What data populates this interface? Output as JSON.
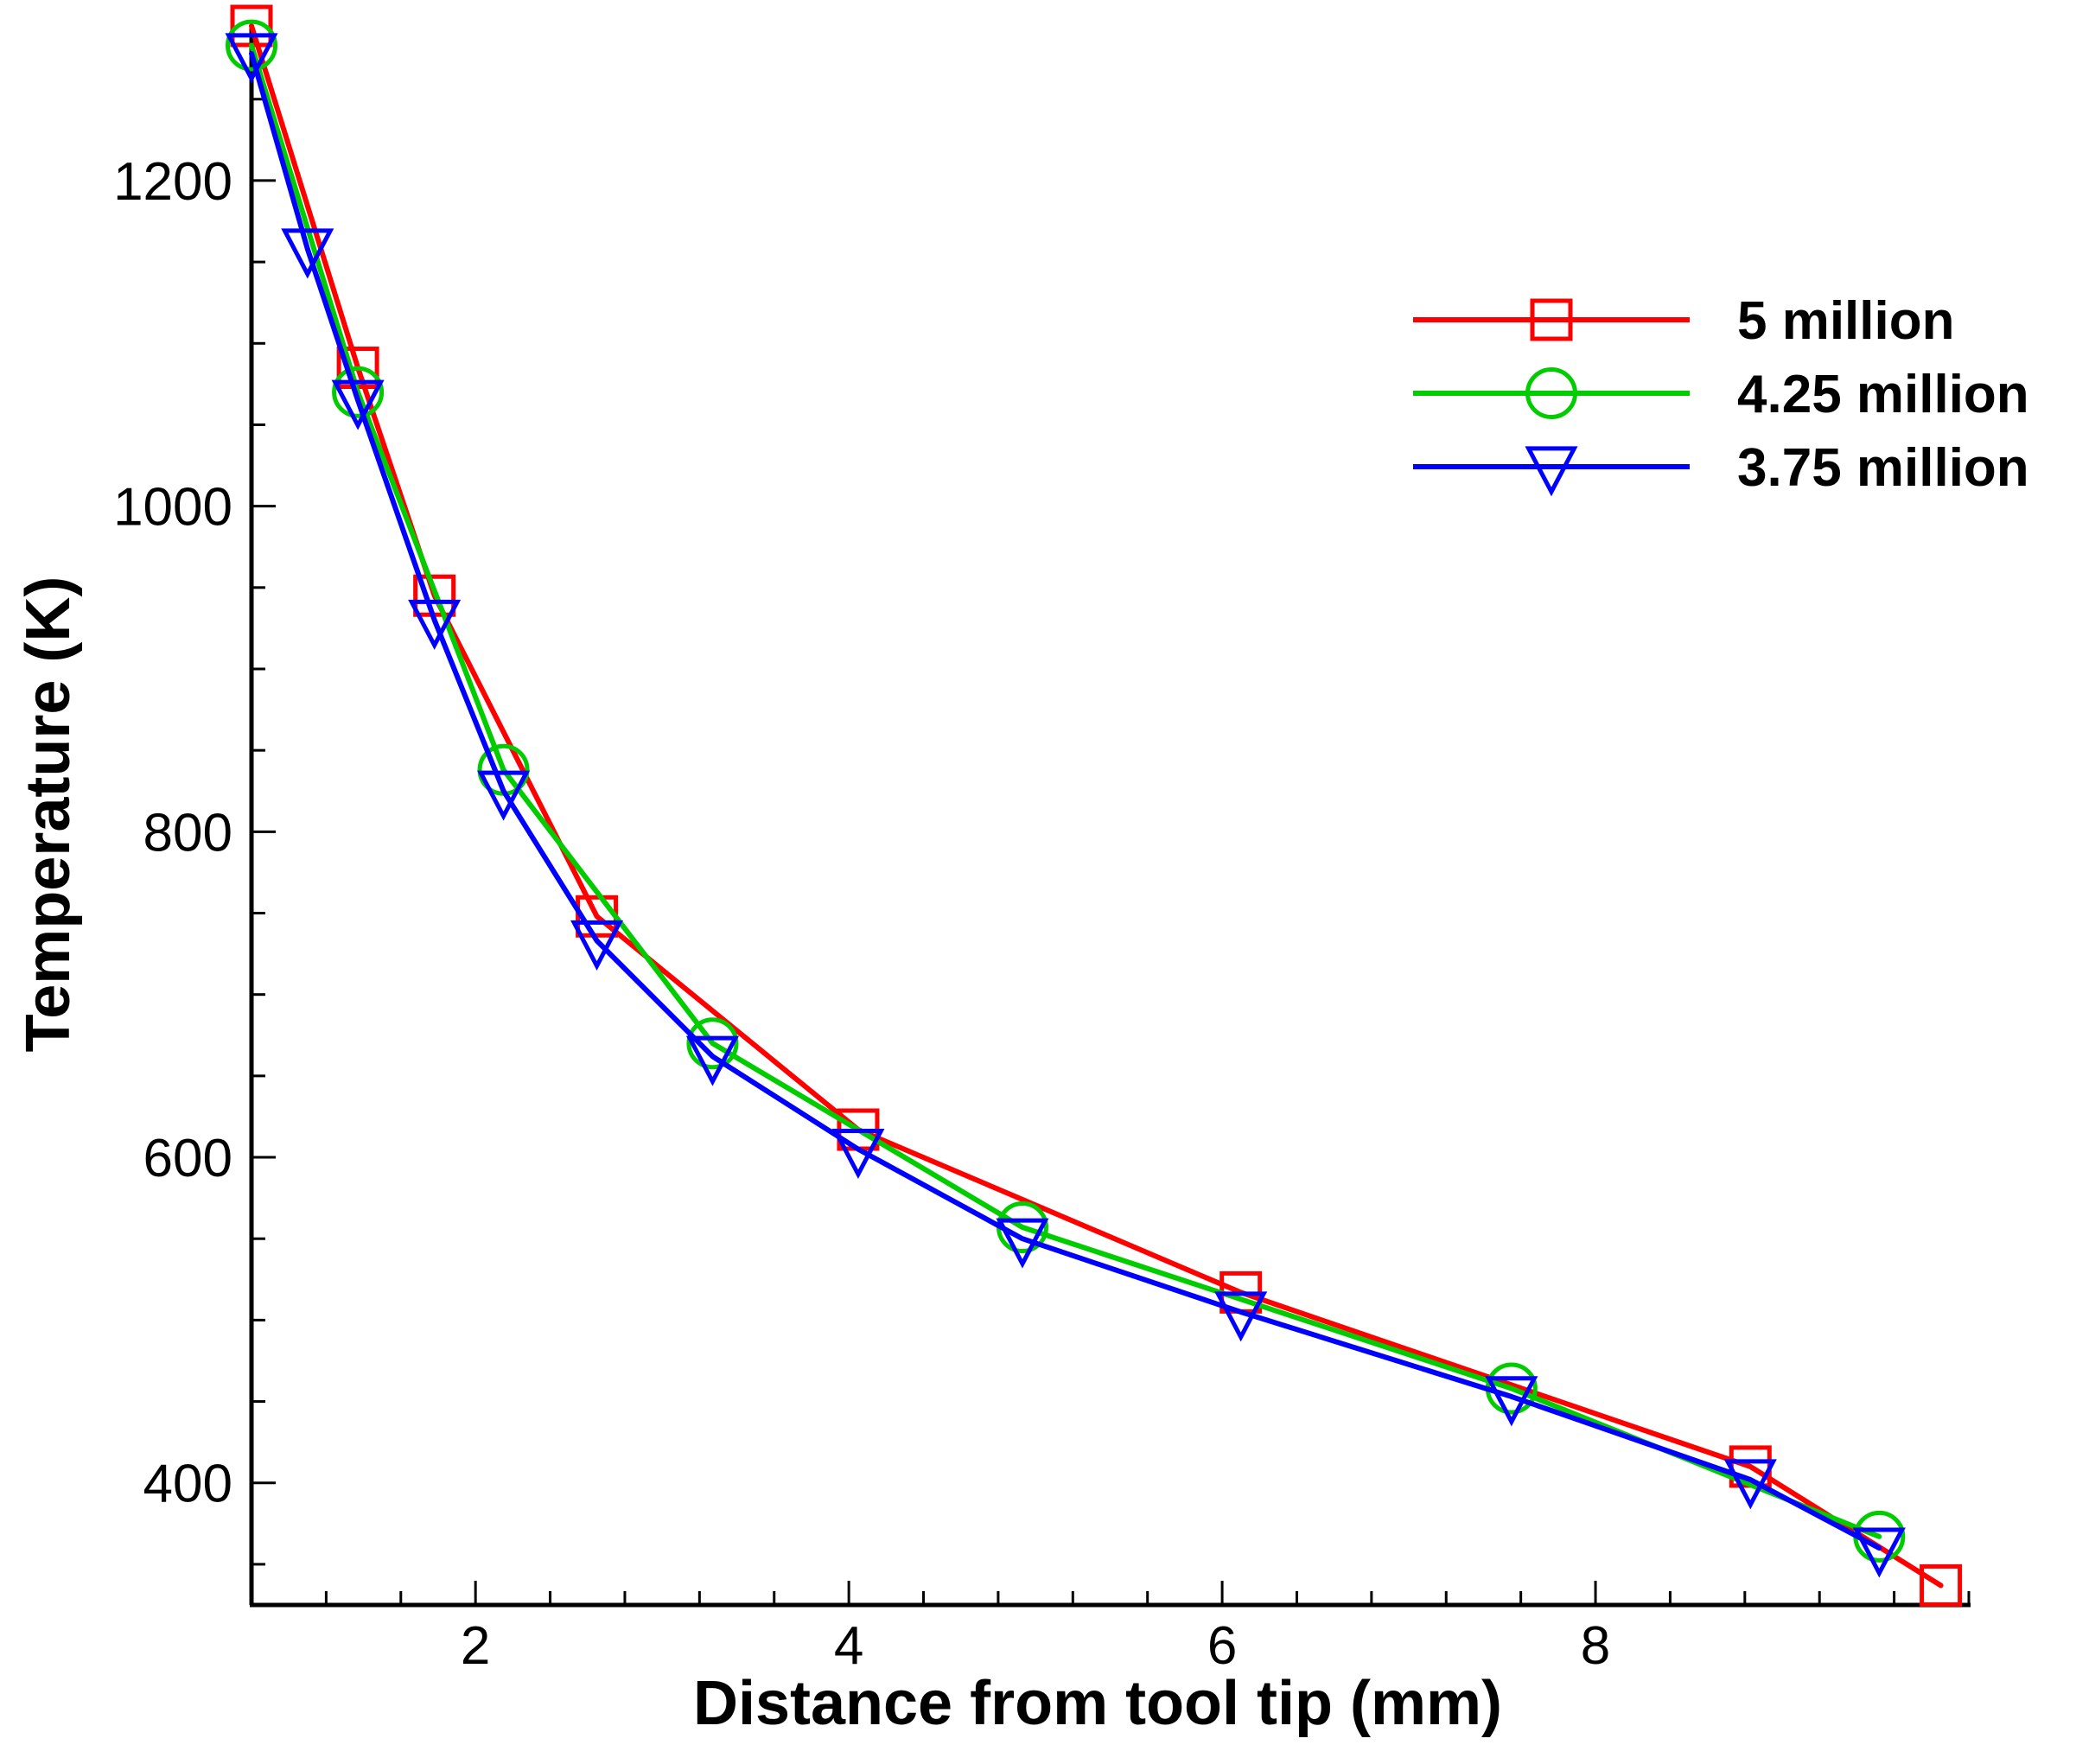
{
  "chart_data": {
    "type": "line",
    "title": "",
    "xlabel": "Distance from tool tip (mm)",
    "ylabel": "Temperature (K)",
    "xlim": [
      0.8,
      10.0
    ],
    "ylim": [
      325,
      1295
    ],
    "x_major_ticks": [
      2,
      4,
      6,
      8
    ],
    "x_minor_step": 0.4,
    "y_major_ticks": [
      400,
      600,
      800,
      1000,
      1200
    ],
    "y_minor_step": 50,
    "grid": false,
    "legend_position": "top-right",
    "series": [
      {
        "name": "5 million",
        "color": "#ff0000",
        "marker": "square",
        "x": [
          0.8,
          1.37,
          1.78,
          2.65,
          4.05,
          6.1,
          8.83,
          9.85
        ],
        "y": [
          1295,
          1085,
          945,
          748,
          617,
          517,
          410,
          337
        ]
      },
      {
        "name": "4.25 million",
        "color": "#00cc00",
        "marker": "circle",
        "x": [
          0.8,
          1.37,
          2.15,
          3.27,
          4.93,
          7.55,
          9.52
        ],
        "y": [
          1283,
          1070,
          838,
          670,
          557,
          458,
          367
        ]
      },
      {
        "name": "3.75 million",
        "color": "#0000ff",
        "marker": "triangle-down",
        "x": [
          0.8,
          1.1,
          1.37,
          1.78,
          2.15,
          2.65,
          3.27,
          4.05,
          4.93,
          6.1,
          7.55,
          8.83,
          9.52
        ],
        "y": [
          1278,
          1158,
          1065,
          930,
          825,
          733,
          662,
          605,
          550,
          505,
          453,
          402,
          360
        ]
      }
    ]
  }
}
